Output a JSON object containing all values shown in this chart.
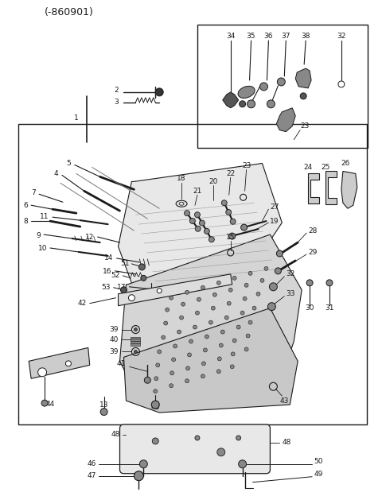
{
  "title": "(-860901)",
  "bg_color": "#ffffff",
  "line_color": "#1a1a1a",
  "text_color": "#1a1a1a",
  "fig_width": 4.8,
  "fig_height": 6.24,
  "dpi": 100
}
